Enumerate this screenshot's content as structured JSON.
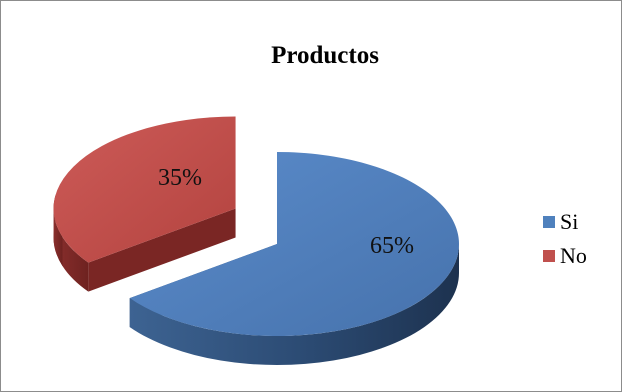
{
  "chart_data": {
    "type": "pie",
    "title": "Productos",
    "style": "3d-exploded",
    "legend_position": "right",
    "slices": [
      {
        "label": "Si",
        "value": 65,
        "display": "65%",
        "color": "#4F81BD"
      },
      {
        "label": "No",
        "value": 35,
        "display": "35%",
        "color": "#C0504D"
      }
    ]
  }
}
